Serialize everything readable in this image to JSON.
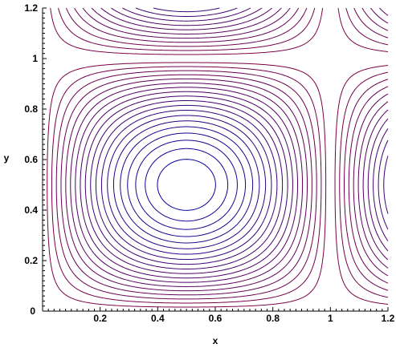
{
  "chart_data": {
    "type": "contour",
    "title": "",
    "xlabel": "x",
    "ylabel": "y",
    "xlim": [
      0,
      1.2
    ],
    "ylim": [
      0,
      1.2
    ],
    "x_ticks": [
      {
        "value": 0.2,
        "label": "0.2"
      },
      {
        "value": 0.4,
        "label": "0.4"
      },
      {
        "value": 0.6,
        "label": "0.6"
      },
      {
        "value": 0.8,
        "label": "0.8"
      },
      {
        "value": 1.0,
        "label": "1"
      },
      {
        "value": 1.2,
        "label": "1.2"
      }
    ],
    "y_ticks": [
      {
        "value": 0.0,
        "label": "0"
      },
      {
        "value": 0.2,
        "label": "0.2"
      },
      {
        "value": 0.4,
        "label": "0.4"
      },
      {
        "value": 0.6,
        "label": "0.6"
      },
      {
        "value": 0.8,
        "label": "0.8"
      },
      {
        "value": 1.0,
        "label": "1"
      },
      {
        "value": 1.2,
        "label": "1.2"
      }
    ],
    "function": "sin(pi*x)*sin(pi*y)",
    "levels": [
      -0.95,
      -0.9,
      -0.85,
      -0.8,
      -0.75,
      -0.7,
      -0.65,
      -0.6,
      -0.55,
      -0.5,
      -0.45,
      -0.4,
      -0.35,
      -0.3,
      -0.25,
      -0.2,
      -0.15,
      -0.1,
      -0.05,
      0.05,
      0.1,
      0.15,
      0.2,
      0.25,
      0.3,
      0.35,
      0.4,
      0.45,
      0.5,
      0.55,
      0.6,
      0.65,
      0.7,
      0.75,
      0.8,
      0.85,
      0.9,
      0.95
    ],
    "colors": {
      "outer": "#800040",
      "inner": "#0000a0"
    },
    "grid": false
  }
}
